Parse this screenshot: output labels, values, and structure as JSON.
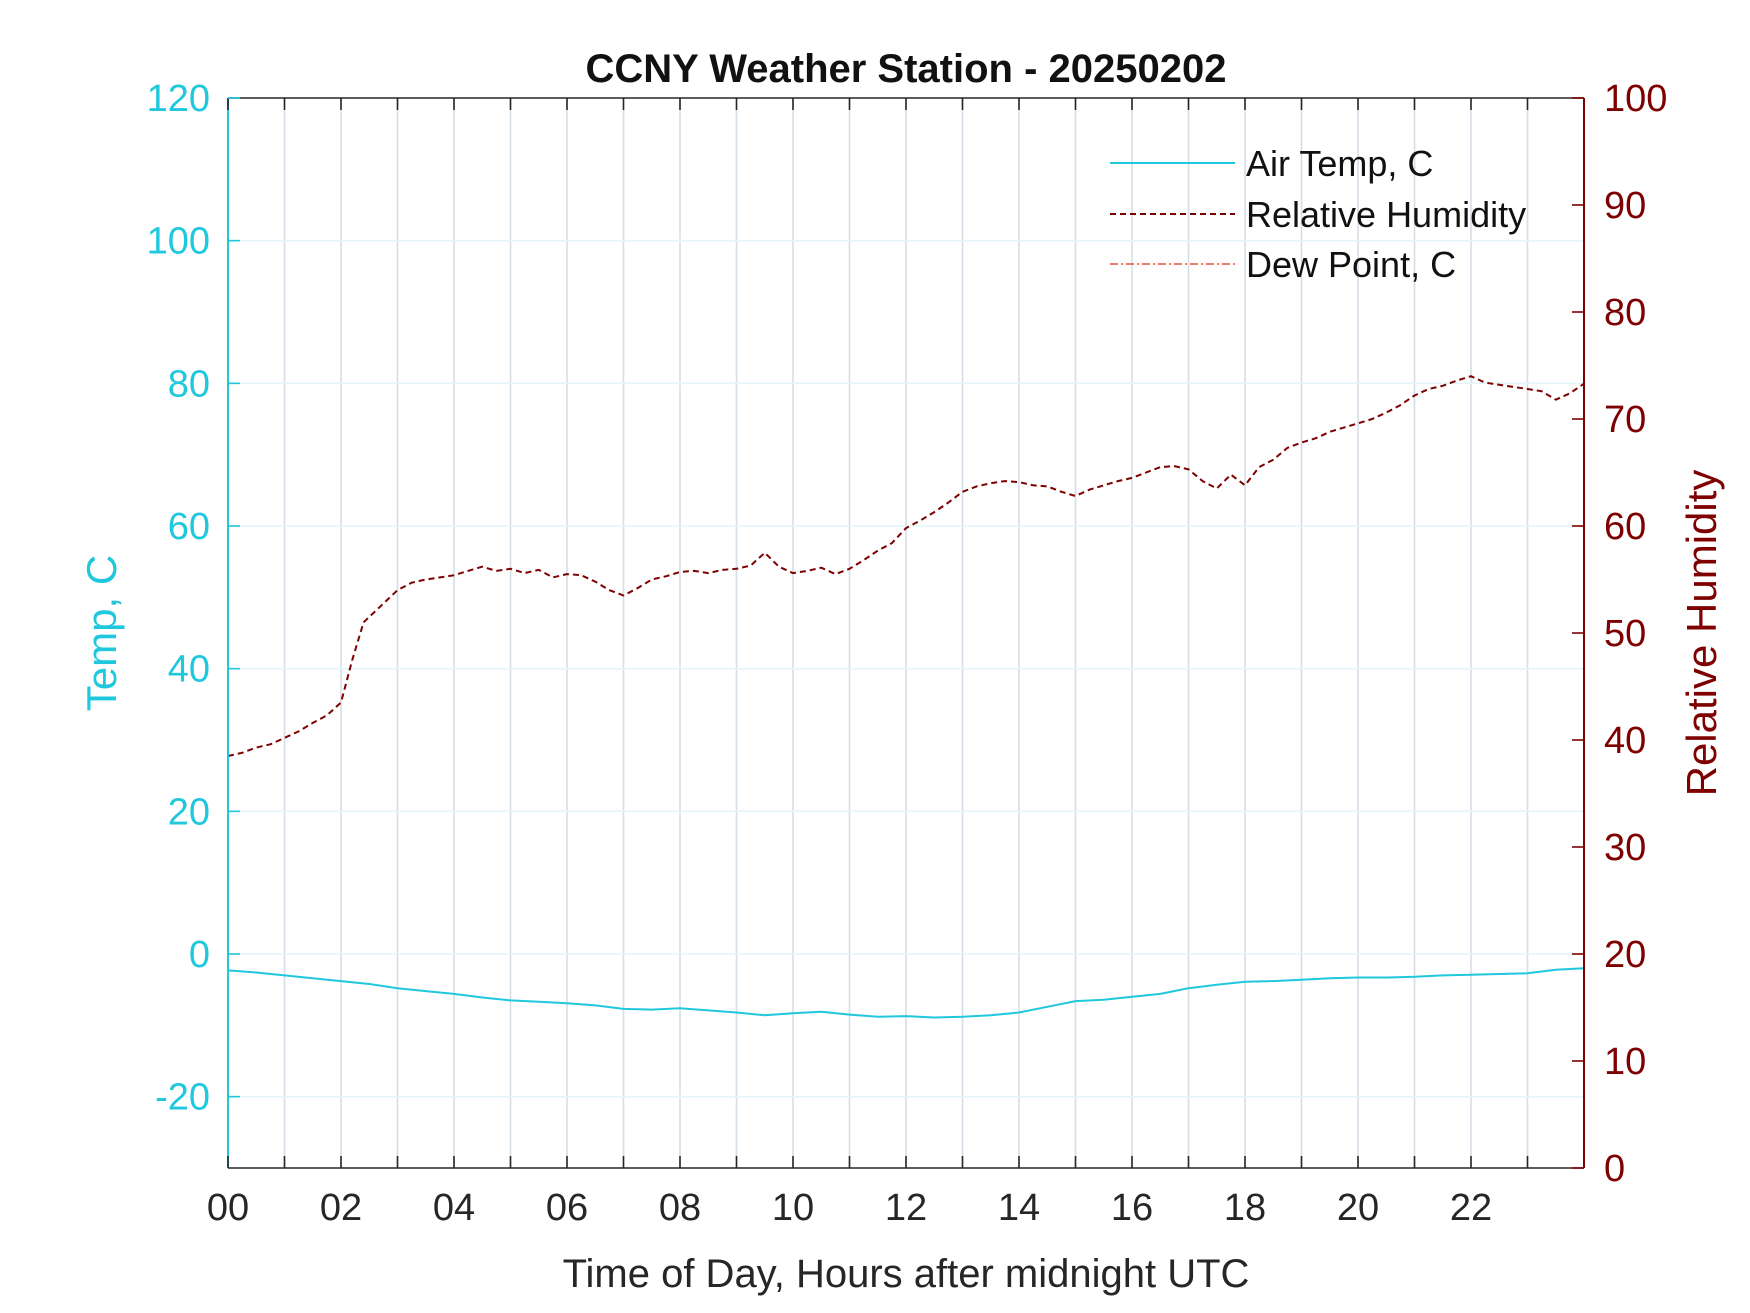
{
  "chart_data": {
    "type": "line",
    "title": "CCNY Weather Station - 20250202",
    "xlabel": "Time of Day, Hours after midnight UTC",
    "ylabel_left": "Temp, C",
    "ylabel_right": "Relative Humidity",
    "xlim": [
      0,
      24
    ],
    "ylim_left": [
      -30,
      120
    ],
    "ylim_right": [
      0,
      100
    ],
    "x_ticks": [
      0,
      2,
      4,
      6,
      8,
      10,
      12,
      14,
      16,
      18,
      20,
      22
    ],
    "x_tick_labels": [
      "00",
      "02",
      "04",
      "06",
      "08",
      "10",
      "12",
      "14",
      "16",
      "18",
      "20",
      "22"
    ],
    "y_left_ticks": [
      -20,
      0,
      20,
      40,
      60,
      80,
      100,
      120
    ],
    "y_left_tick_labels": [
      "-20",
      "0",
      "20",
      "40",
      "60",
      "80",
      "100",
      "120"
    ],
    "y_right_ticks": [
      0,
      10,
      20,
      30,
      40,
      50,
      60,
      70,
      80,
      90,
      100
    ],
    "y_right_tick_labels": [
      "0",
      "10",
      "20",
      "30",
      "40",
      "50",
      "60",
      "70",
      "80",
      "90",
      "100"
    ],
    "grid": true,
    "legend_position": "top-right",
    "colors": {
      "left_axis": "#1FC8DC",
      "right_axis": "#7F0000",
      "dew_point": "#E8503A",
      "grid": "#D5DEE6",
      "text": "#222222"
    },
    "series": [
      {
        "name": "Air Temp, C",
        "axis": "left",
        "style": "solid",
        "x": [
          0,
          0.5,
          1,
          1.5,
          2,
          2.5,
          3,
          3.5,
          4,
          4.5,
          5,
          5.5,
          6,
          6.5,
          7,
          7.5,
          8,
          8.5,
          9,
          9.5,
          10,
          10.5,
          11,
          11.5,
          12,
          12.5,
          13,
          13.5,
          14,
          14.5,
          15,
          15.5,
          16,
          16.5,
          17,
          17.5,
          18,
          18.5,
          19,
          19.5,
          20,
          20.5,
          21,
          21.5,
          22,
          22.5,
          23,
          23.5,
          24
        ],
        "values": [
          -2.3,
          -2.6,
          -3.0,
          -3.4,
          -3.8,
          -4.2,
          -4.8,
          -5.2,
          -5.6,
          -6.1,
          -6.5,
          -6.7,
          -6.9,
          -7.2,
          -7.7,
          -7.8,
          -7.6,
          -7.9,
          -8.2,
          -8.6,
          -8.3,
          -8.1,
          -8.5,
          -8.8,
          -8.7,
          -8.9,
          -8.8,
          -8.6,
          -8.2,
          -7.4,
          -6.6,
          -6.4,
          -6.0,
          -5.6,
          -4.8,
          -4.3,
          -3.9,
          -3.8,
          -3.6,
          -3.4,
          -3.3,
          -3.3,
          -3.2,
          -3.0,
          -2.9,
          -2.8,
          -2.7,
          -2.2,
          -2.0
        ]
      },
      {
        "name": "Relative Humidity",
        "axis": "right",
        "style": "dashed",
        "x": [
          0,
          0.25,
          0.5,
          0.75,
          1,
          1.25,
          1.5,
          1.75,
          2,
          2.2,
          2.4,
          2.6,
          2.8,
          3,
          3.25,
          3.5,
          3.75,
          4,
          4.25,
          4.5,
          4.75,
          5,
          5.25,
          5.5,
          5.75,
          6,
          6.25,
          6.5,
          6.75,
          7,
          7.25,
          7.5,
          7.75,
          8,
          8.25,
          8.5,
          8.75,
          9,
          9.25,
          9.5,
          9.75,
          10,
          10.25,
          10.5,
          10.75,
          11,
          11.25,
          11.5,
          11.75,
          12,
          12.25,
          12.5,
          12.75,
          13,
          13.25,
          13.5,
          13.75,
          14,
          14.25,
          14.5,
          14.75,
          15,
          15.25,
          15.5,
          15.75,
          16,
          16.25,
          16.5,
          16.75,
          17,
          17.25,
          17.5,
          17.75,
          18,
          18.25,
          18.5,
          18.75,
          19,
          19.25,
          19.5,
          19.75,
          20,
          20.25,
          20.5,
          20.75,
          21,
          21.25,
          21.5,
          21.75,
          22,
          22.25,
          22.5,
          22.75,
          23,
          23.25,
          23.5,
          23.75,
          24
        ],
        "values": [
          38.5,
          38.8,
          39.3,
          39.6,
          40.2,
          40.8,
          41.6,
          42.3,
          43.5,
          47.5,
          51.0,
          52.0,
          53.0,
          54.0,
          54.7,
          55.0,
          55.2,
          55.4,
          55.8,
          56.2,
          55.8,
          56.0,
          55.6,
          55.9,
          55.2,
          55.5,
          55.4,
          54.8,
          54.0,
          53.5,
          54.2,
          55.0,
          55.3,
          55.7,
          55.8,
          55.6,
          55.9,
          56.0,
          56.3,
          57.5,
          56.2,
          55.6,
          55.8,
          56.1,
          55.5,
          56.0,
          56.8,
          57.7,
          58.4,
          59.8,
          60.5,
          61.3,
          62.2,
          63.2,
          63.7,
          64.0,
          64.2,
          64.1,
          63.8,
          63.7,
          63.2,
          62.8,
          63.4,
          63.8,
          64.2,
          64.5,
          65.0,
          65.5,
          65.6,
          65.3,
          64.2,
          63.5,
          64.8,
          63.8,
          65.5,
          66.2,
          67.3,
          67.8,
          68.2,
          68.8,
          69.2,
          69.6,
          70.0,
          70.6,
          71.3,
          72.2,
          72.8,
          73.1,
          73.6,
          74.0,
          73.4,
          73.2,
          73.0,
          72.8,
          72.6,
          71.8,
          72.4,
          73.3
        ]
      },
      {
        "name": "Dew Point, C",
        "axis": "left",
        "style": "dashdot",
        "x": [],
        "values": []
      }
    ]
  }
}
